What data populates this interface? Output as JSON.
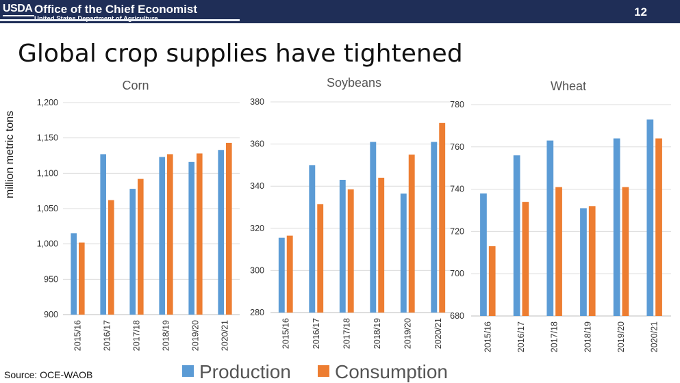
{
  "header": {
    "logo_text": "USDA",
    "office": "Office of the Chief Economist",
    "department": "United States Department of Agriculture",
    "page_number": "12",
    "banner_color": "#1f2e57"
  },
  "slide_title": "Global crop supplies have tightened",
  "ylabel": "million metric tons",
  "source": "Source: OCE-WAOB",
  "legend": [
    {
      "label": "Production",
      "color": "#5b9bd5"
    },
    {
      "label": "Consumption",
      "color": "#ed7d31"
    }
  ],
  "chart_data": [
    {
      "type": "bar",
      "title": "Corn",
      "categories": [
        "2015/16",
        "2016/17",
        "2017/18",
        "2018/19",
        "2019/20",
        "2020/21"
      ],
      "ylim": [
        900,
        1200
      ],
      "yticks": [
        "900",
        "950",
        "1,000",
        "1,050",
        "1,100",
        "1,150",
        "1,200"
      ],
      "grid": true,
      "series": [
        {
          "name": "Production",
          "color": "#5b9bd5",
          "values": [
            1015,
            1127,
            1078,
            1123,
            1116,
            1133
          ]
        },
        {
          "name": "Consumption",
          "color": "#ed7d31",
          "values": [
            1002,
            1062,
            1092,
            1127,
            1128,
            1143
          ]
        }
      ]
    },
    {
      "type": "bar",
      "title": "Soybeans",
      "categories": [
        "2015/16",
        "2016/17",
        "2017/18",
        "2018/19",
        "2019/20",
        "2020/21"
      ],
      "ylim": [
        280,
        380
      ],
      "yticks": [
        "280",
        "300",
        "320",
        "340",
        "360",
        "380"
      ],
      "grid": true,
      "series": [
        {
          "name": "Production",
          "color": "#5b9bd5",
          "values": [
            315.5,
            350,
            343,
            361,
            336.5,
            361
          ]
        },
        {
          "name": "Consumption",
          "color": "#ed7d31",
          "values": [
            316.5,
            331.5,
            338.5,
            344,
            355,
            370
          ]
        }
      ]
    },
    {
      "type": "bar",
      "title": "Wheat",
      "categories": [
        "2015/16",
        "2016/17",
        "2017/18",
        "2018/19",
        "2019/20",
        "2020/21"
      ],
      "ylim": [
        680,
        780
      ],
      "yticks": [
        "680",
        "700",
        "720",
        "740",
        "760",
        "780"
      ],
      "grid": true,
      "series": [
        {
          "name": "Production",
          "color": "#5b9bd5",
          "values": [
            738,
            756,
            763,
            731,
            764,
            773
          ]
        },
        {
          "name": "Consumption",
          "color": "#ed7d31",
          "values": [
            713,
            734,
            741,
            732,
            741,
            764
          ]
        }
      ]
    }
  ]
}
